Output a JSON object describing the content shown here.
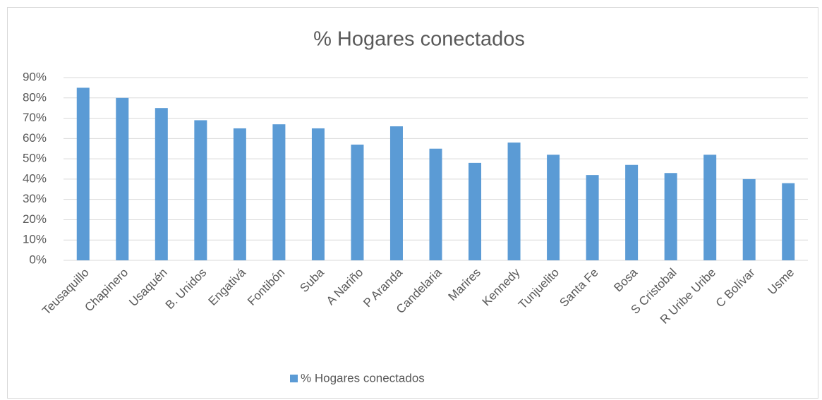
{
  "chart_data": {
    "type": "bar",
    "title": "% Hogares conectados",
    "categories": [
      "Teusaquillo",
      "Chapinero",
      "Usaquén",
      "B. Unidos",
      "Engativá",
      "Fontibón",
      "Suba",
      "A Nariño",
      "P Aranda",
      "Candelaria",
      "Marires",
      "Kennedy",
      "Tunjuelito",
      "Santa Fe",
      "Bosa",
      "S Cristobal",
      "R Uribe Uribe",
      "C Bolívar",
      "Usme"
    ],
    "series": [
      {
        "name": "% Hogares conectados",
        "color": "#5b9bd5",
        "values": [
          85,
          80,
          75,
          69,
          65,
          67,
          65,
          57,
          66,
          55,
          48,
          58,
          52,
          42,
          47,
          43,
          52,
          40,
          38
        ]
      }
    ],
    "ylim": [
      0,
      90
    ],
    "yticks": [
      {
        "value": 0,
        "label": "0%"
      },
      {
        "value": 10,
        "label": "10%"
      },
      {
        "value": 20,
        "label": "20%"
      },
      {
        "value": 30,
        "label": "30%"
      },
      {
        "value": 40,
        "label": "40%"
      },
      {
        "value": 50,
        "label": "50%"
      },
      {
        "value": 60,
        "label": "60%"
      },
      {
        "value": 70,
        "label": "70%"
      },
      {
        "value": 80,
        "label": "80%"
      },
      {
        "value": 90,
        "label": "90%"
      }
    ],
    "grid": true,
    "legend": "bottom"
  }
}
